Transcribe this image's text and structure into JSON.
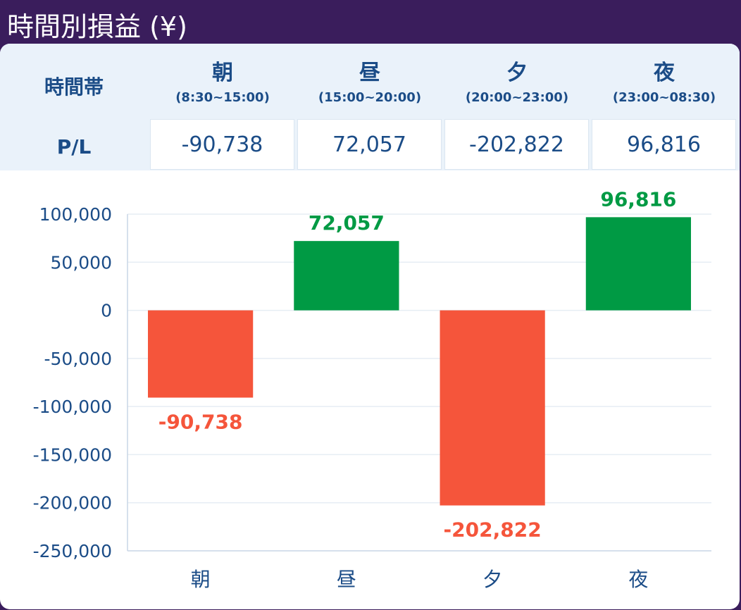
{
  "title": "時間別損益 (¥)",
  "table": {
    "header_label": "時間帯",
    "row_label": "P/L",
    "columns": [
      {
        "name": "朝",
        "range": "(8:30~15:00)",
        "value": "-90,738"
      },
      {
        "name": "昼",
        "range": "(15:00~20:00)",
        "value": "72,057"
      },
      {
        "name": "夕",
        "range": "(20:00~23:00)",
        "value": "-202,822"
      },
      {
        "name": "夜",
        "range": "(23:00~08:30)",
        "value": "96,816"
      }
    ]
  },
  "chart_data": {
    "type": "bar",
    "categories": [
      "朝",
      "昼",
      "夕",
      "夜"
    ],
    "values": [
      -90738,
      72057,
      -202822,
      96816
    ],
    "data_labels": [
      "-90,738",
      "72,057",
      "-202,822",
      "96,816"
    ],
    "ylim": [
      -250000,
      100000
    ],
    "yticks": [
      100000,
      50000,
      0,
      -50000,
      -100000,
      -150000,
      -200000,
      -250000
    ],
    "ytick_labels": [
      "100,000",
      "50,000",
      "0",
      "-50,000",
      "-100,000",
      "-150,000",
      "-200,000",
      "-250,000"
    ],
    "grid": true,
    "colors": {
      "positive": "#009a44",
      "negative": "#f5553b"
    }
  },
  "colors": {
    "header_bg": "#3a1d5c",
    "text": "#1b4c87",
    "table_bg": "#eaf2fa"
  }
}
